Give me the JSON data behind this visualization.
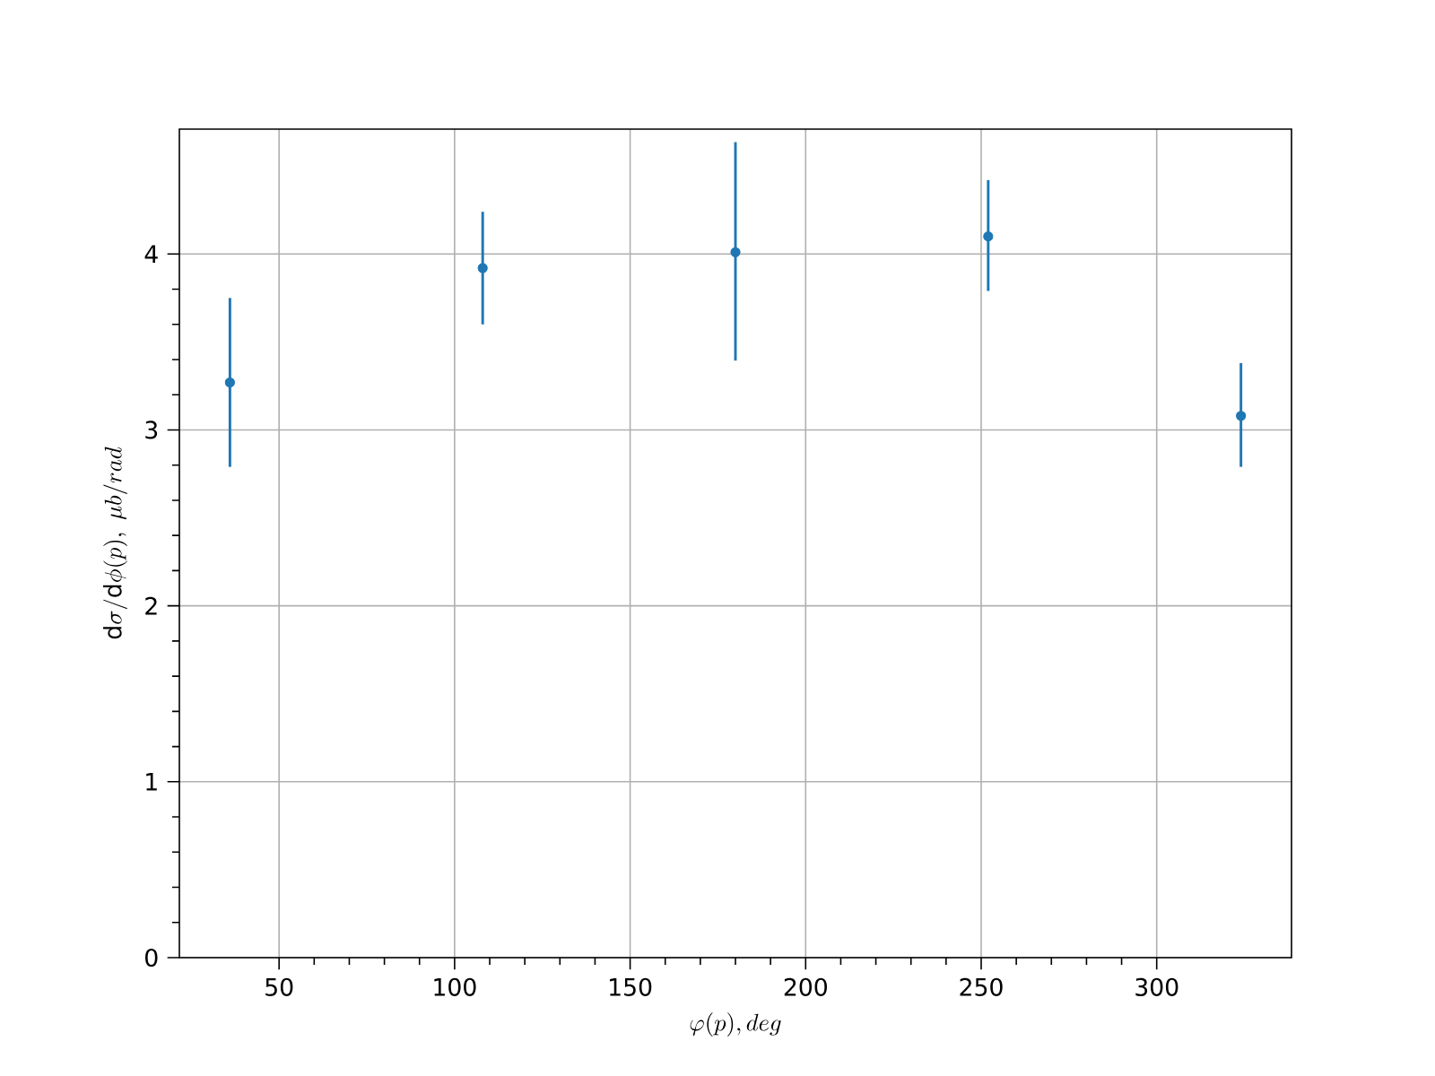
{
  "chart_data": {
    "type": "scatter",
    "xlabel": "\\varphi(p), deg",
    "ylabel": "\\mathrm{d}\\sigma/\\mathrm{d}\\phi(p),\\ \\mu b/rad",
    "x": [
      36,
      108,
      180,
      252,
      324
    ],
    "series": [
      {
        "color": "#1f77b4",
        "values": [
          3.27,
          3.92,
          4.01,
          4.1,
          3.08
        ],
        "errors": [
          [
            2.79,
            3.75
          ],
          [
            3.6,
            4.24
          ],
          [
            3.394,
            4.636
          ],
          [
            3.79,
            4.42
          ],
          [
            2.79,
            3.38
          ]
        ]
      }
    ],
    "xlim": [
      21.6,
      338.4
    ],
    "ylim": [
      0,
      4.71
    ],
    "xticks": [
      50,
      100,
      150,
      200,
      250,
      300
    ],
    "yticks": [
      0,
      1,
      2,
      3,
      4
    ],
    "grid": true,
    "marker": "circle"
  }
}
